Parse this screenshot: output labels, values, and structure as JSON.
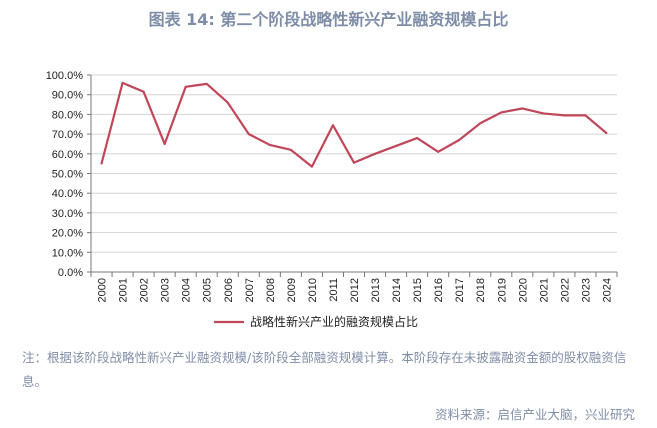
{
  "title": "图表 14: 第二个阶段战略性新兴产业融资规模占比",
  "note": "注：根据该阶段战略性新兴产业融资规模/该阶段全部融资规模计算。本阶段存在未披露融资金额的股权融资信息。",
  "source": "资料来源：启信产业大脑，兴业研究",
  "chart_data": {
    "type": "line",
    "categories": [
      "2000",
      "2001",
      "2002",
      "2003",
      "2004",
      "2005",
      "2006",
      "2007",
      "2008",
      "2009",
      "2010",
      "2011",
      "2012",
      "2013",
      "2014",
      "2015",
      "2016",
      "2017",
      "2018",
      "2019",
      "2020",
      "2021",
      "2022",
      "2023",
      "2024"
    ],
    "series": [
      {
        "name": "战略性新兴产业的融资规模占比",
        "color": "#c0465a",
        "values": [
          55,
          96,
          91.5,
          65,
          94,
          95.5,
          86,
          70,
          64.5,
          62,
          53.5,
          74.5,
          55.5,
          60,
          64,
          68,
          61,
          67,
          75.5,
          81,
          83,
          80.5,
          79.5,
          79.5,
          70.5
        ]
      }
    ],
    "yticks": [
      "0.0%",
      "10.0%",
      "20.0%",
      "30.0%",
      "40.0%",
      "50.0%",
      "60.0%",
      "70.0%",
      "80.0%",
      "90.0%",
      "100.0%"
    ],
    "ylim": [
      0,
      100
    ],
    "grid": true,
    "legend": "bottom"
  }
}
